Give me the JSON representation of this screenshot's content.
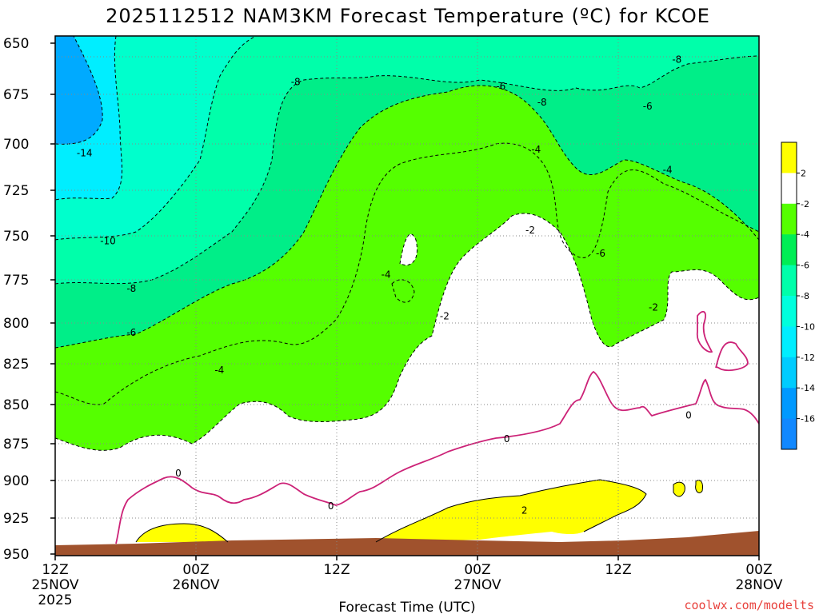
{
  "chart_data": {
    "type": "heatmap",
    "title": "2025112512 NAM3KM Forecast Temperature (ºC) for KCOE",
    "xlabel": "Forecast Time (UTC)",
    "ylabel": "",
    "x_ticks": [
      {
        "hours": 0,
        "line1": "12Z",
        "line2": "25NOV",
        "line3": "2025"
      },
      {
        "hours": 12,
        "line1": "00Z",
        "line2": "26NOV",
        "line3": ""
      },
      {
        "hours": 24,
        "line1": "12Z",
        "line2": "",
        "line3": ""
      },
      {
        "hours": 36,
        "line1": "00Z",
        "line2": "27NOV",
        "line3": ""
      },
      {
        "hours": 48,
        "line1": "12Z",
        "line2": "",
        "line3": ""
      },
      {
        "hours": 60,
        "line1": "00Z",
        "line2": "28NOV",
        "line3": ""
      }
    ],
    "xlim_hours": [
      0,
      60
    ],
    "y_ticks": [
      "650",
      "675",
      "700",
      "725",
      "750",
      "775",
      "800",
      "825",
      "850",
      "875",
      "900",
      "925",
      "950"
    ],
    "ylim_hpa": [
      950,
      650
    ],
    "colorbar": {
      "levels": [
        "2",
        "-2",
        "-4",
        "-6",
        "-8",
        "-10",
        "-12",
        "-14",
        "-16"
      ],
      "colors": [
        "#ffff00",
        "#ffffff",
        "#55ff00",
        "#00ee55",
        "#00ffaa",
        "#00ffdd",
        "#00eeff",
        "#00ccff",
        "#0099ff"
      ],
      "bottom_color": "#1188ff"
    },
    "contour_labels": [
      {
        "text": "-14",
        "hours": 2.5,
        "hpa": 705
      },
      {
        "text": "-10",
        "hours": 4.5,
        "hpa": 753
      },
      {
        "text": "-8",
        "hours": 6.5,
        "hpa": 780
      },
      {
        "text": "-6",
        "hours": 6.5,
        "hpa": 806
      },
      {
        "text": "-4",
        "hours": 14.0,
        "hpa": 829
      },
      {
        "text": "-8",
        "hours": 20.5,
        "hpa": 669
      },
      {
        "text": "-4",
        "hours": 28.2,
        "hpa": 772
      },
      {
        "text": "-2",
        "hours": 33.2,
        "hpa": 796
      },
      {
        "text": "-6",
        "hours": 38.0,
        "hpa": 671
      },
      {
        "text": "-8",
        "hours": 41.5,
        "hpa": 679
      },
      {
        "text": "-4",
        "hours": 41.0,
        "hpa": 703
      },
      {
        "text": "-2",
        "hours": 40.5,
        "hpa": 747
      },
      {
        "text": "-6",
        "hours": 46.5,
        "hpa": 760
      },
      {
        "text": "-6",
        "hours": 50.5,
        "hpa": 681
      },
      {
        "text": "-8",
        "hours": 53.0,
        "hpa": 658
      },
      {
        "text": "-4",
        "hours": 52.2,
        "hpa": 714
      },
      {
        "text": "-2",
        "hours": 51.0,
        "hpa": 791
      },
      {
        "text": "0",
        "hours": 10.5,
        "hpa": 895
      },
      {
        "text": "0",
        "hours": 23.5,
        "hpa": 917
      },
      {
        "text": "0",
        "hours": 38.5,
        "hpa": 872
      },
      {
        "text": "0",
        "hours": 54.0,
        "hpa": 857
      },
      {
        "text": "2",
        "hours": 40.0,
        "hpa": 920
      }
    ],
    "background_color": "#00ffcc",
    "terrain_color": "#a0522d"
  },
  "credit": "coolwx.com/modelts"
}
